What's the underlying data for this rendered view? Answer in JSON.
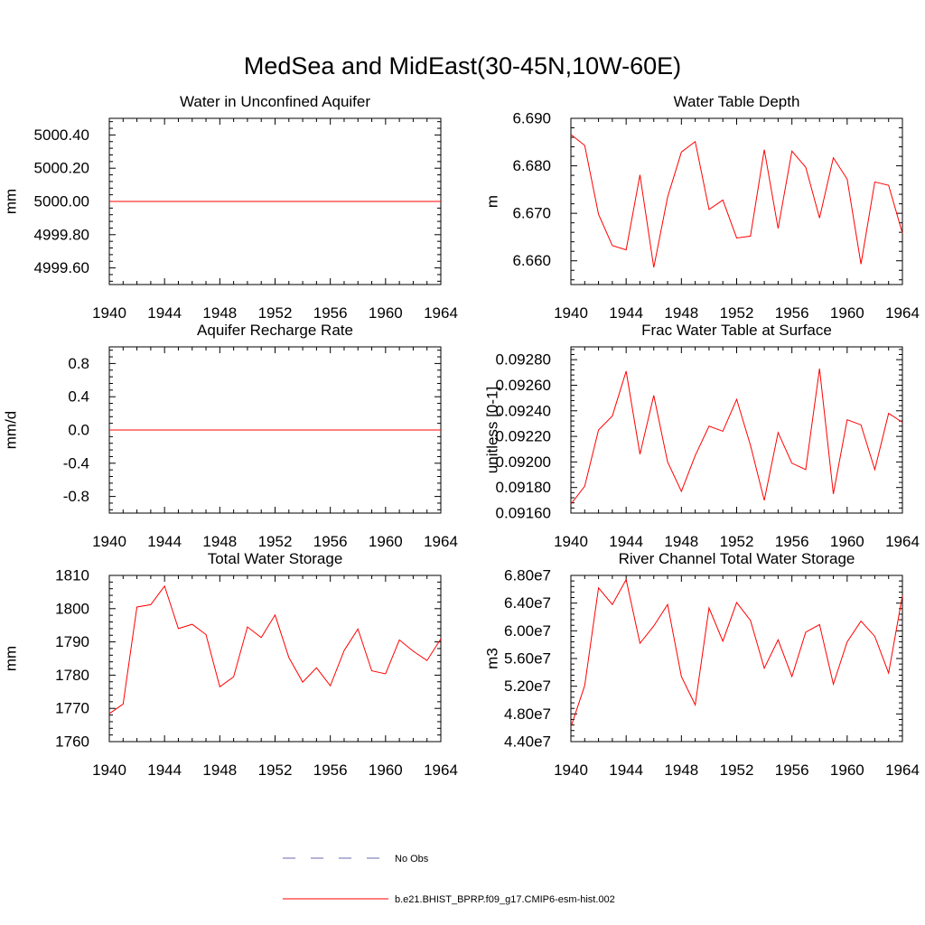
{
  "page_title": "MedSea and MidEast(30-45N,10W-60E)",
  "colors": {
    "model": "#ff0000",
    "obs": "#6a6ab0",
    "axis": "#000000"
  },
  "legend": {
    "obs_label": "No Obs",
    "model_label": "b.e21.BHIST_BPRP.f09_g17.CMIP6-esm-hist.002"
  },
  "chart_data": [
    {
      "type": "line",
      "title": "Water in Unconfined Aquifer",
      "xlabel": "",
      "ylabel": "mm",
      "xlim": [
        1940,
        1964
      ],
      "ylim": [
        4999.5,
        5000.5
      ],
      "xticks": [
        1940,
        1944,
        1948,
        1952,
        1956,
        1960,
        1964
      ],
      "xtick_labels": [
        "1940",
        "1944",
        "1948",
        "1952",
        "1956",
        "1960",
        "1964"
      ],
      "yticks": [
        4999.6,
        4999.8,
        5000.0,
        5000.2,
        5000.4
      ],
      "ytick_labels": [
        "4999.60",
        "4999.80",
        "5000.00",
        "5000.20",
        "5000.40"
      ],
      "x": [
        1940,
        1941,
        1942,
        1943,
        1944,
        1945,
        1946,
        1947,
        1948,
        1949,
        1950,
        1951,
        1952,
        1953,
        1954,
        1955,
        1956,
        1957,
        1958,
        1959,
        1960,
        1961,
        1962,
        1963,
        1964
      ],
      "series": [
        {
          "name": "b.e21.BHIST_BPRP.f09_g17.CMIP6-esm-hist.002",
          "values": [
            5000,
            5000,
            5000,
            5000,
            5000,
            5000,
            5000,
            5000,
            5000,
            5000,
            5000,
            5000,
            5000,
            5000,
            5000,
            5000,
            5000,
            5000,
            5000,
            5000,
            5000,
            5000,
            5000,
            5000,
            5000
          ]
        }
      ]
    },
    {
      "type": "line",
      "title": "Water Table Depth",
      "xlabel": "",
      "ylabel": "m",
      "xlim": [
        1940,
        1964
      ],
      "ylim": [
        6.655,
        6.69
      ],
      "xticks": [
        1940,
        1944,
        1948,
        1952,
        1956,
        1960,
        1964
      ],
      "xtick_labels": [
        "1940",
        "1944",
        "1948",
        "1952",
        "1956",
        "1960",
        "1964"
      ],
      "yticks": [
        6.66,
        6.67,
        6.68,
        6.69
      ],
      "ytick_labels": [
        "6.660",
        "6.670",
        "6.680",
        "6.690"
      ],
      "x": [
        1940,
        1941,
        1942,
        1943,
        1944,
        1945,
        1946,
        1947,
        1948,
        1949,
        1950,
        1951,
        1952,
        1953,
        1954,
        1955,
        1956,
        1957,
        1958,
        1959,
        1960,
        1961,
        1962,
        1963,
        1964
      ],
      "series": [
        {
          "name": "b.e21.BHIST_BPRP.f09_g17.CMIP6-esm-hist.002",
          "values": [
            6.6866,
            6.6843,
            6.6698,
            6.6632,
            6.6623,
            6.6781,
            6.6586,
            6.6734,
            6.6829,
            6.6851,
            6.6708,
            6.6728,
            6.6648,
            6.6652,
            6.6834,
            6.6668,
            6.6831,
            6.6797,
            6.669,
            6.6817,
            6.6772,
            6.6593,
            6.6766,
            6.6759,
            6.6658
          ]
        }
      ]
    },
    {
      "type": "line",
      "title": "Aquifer Recharge Rate",
      "xlabel": "",
      "ylabel": "mm/d",
      "xlim": [
        1940,
        1964
      ],
      "ylim": [
        -1.0,
        1.0
      ],
      "xticks": [
        1940,
        1944,
        1948,
        1952,
        1956,
        1960,
        1964
      ],
      "xtick_labels": [
        "1940",
        "1944",
        "1948",
        "1952",
        "1956",
        "1960",
        "1964"
      ],
      "yticks": [
        -0.8,
        -0.4,
        0.0,
        0.4,
        0.8
      ],
      "ytick_labels": [
        "-0.8",
        "-0.4",
        "0.0",
        "0.4",
        "0.8"
      ],
      "x": [
        1940,
        1941,
        1942,
        1943,
        1944,
        1945,
        1946,
        1947,
        1948,
        1949,
        1950,
        1951,
        1952,
        1953,
        1954,
        1955,
        1956,
        1957,
        1958,
        1959,
        1960,
        1961,
        1962,
        1963,
        1964
      ],
      "series": [
        {
          "name": "b.e21.BHIST_BPRP.f09_g17.CMIP6-esm-hist.002",
          "values": [
            0,
            0,
            0,
            0,
            0,
            0,
            0,
            0,
            0,
            0,
            0,
            0,
            0,
            0,
            0,
            0,
            0,
            0,
            0,
            0,
            0,
            0,
            0,
            0,
            0
          ]
        }
      ]
    },
    {
      "type": "line",
      "title": "Frac Water Table at Surface",
      "xlabel": "",
      "ylabel": "unitless [0-1]",
      "xlim": [
        1940,
        1964
      ],
      "ylim": [
        0.0916,
        0.0929
      ],
      "xticks": [
        1940,
        1944,
        1948,
        1952,
        1956,
        1960,
        1964
      ],
      "xtick_labels": [
        "1940",
        "1944",
        "1948",
        "1952",
        "1956",
        "1960",
        "1964"
      ],
      "yticks": [
        0.0916,
        0.0918,
        0.092,
        0.0922,
        0.0924,
        0.0926,
        0.0928
      ],
      "ytick_labels": [
        "0.09160",
        "0.09180",
        "0.09200",
        "0.09220",
        "0.09240",
        "0.09260",
        "0.09280"
      ],
      "x": [
        1940,
        1941,
        1942,
        1943,
        1944,
        1945,
        1946,
        1947,
        1948,
        1949,
        1950,
        1951,
        1952,
        1953,
        1954,
        1955,
        1956,
        1957,
        1958,
        1959,
        1960,
        1961,
        1962,
        1963,
        1964
      ],
      "series": [
        {
          "name": "b.e21.BHIST_BPRP.f09_g17.CMIP6-esm-hist.002",
          "values": [
            0.09167,
            0.09181,
            0.09225,
            0.09236,
            0.09271,
            0.09206,
            0.09252,
            0.092,
            0.09177,
            0.09205,
            0.09228,
            0.09224,
            0.09249,
            0.09213,
            0.0917,
            0.09223,
            0.09199,
            0.09194,
            0.09273,
            0.09175,
            0.09233,
            0.09229,
            0.09194,
            0.09238,
            0.09231
          ]
        }
      ]
    },
    {
      "type": "line",
      "title": "Total Water Storage",
      "xlabel": "",
      "ylabel": "mm",
      "xlim": [
        1940,
        1964
      ],
      "ylim": [
        1760,
        1810
      ],
      "xticks": [
        1940,
        1944,
        1948,
        1952,
        1956,
        1960,
        1964
      ],
      "xtick_labels": [
        "1940",
        "1944",
        "1948",
        "1952",
        "1956",
        "1960",
        "1964"
      ],
      "yticks": [
        1760,
        1770,
        1780,
        1790,
        1800,
        1810
      ],
      "ytick_labels": [
        "1760",
        "1770",
        "1780",
        "1790",
        "1800",
        "1810"
      ],
      "x": [
        1940,
        1941,
        1942,
        1943,
        1944,
        1945,
        1946,
        1947,
        1948,
        1949,
        1950,
        1951,
        1952,
        1953,
        1954,
        1955,
        1956,
        1957,
        1958,
        1959,
        1960,
        1961,
        1962,
        1963,
        1964
      ],
      "series": [
        {
          "name": "b.e21.BHIST_BPRP.f09_g17.CMIP6-esm-hist.002",
          "values": [
            1768.4,
            1771.3,
            1800.5,
            1801.2,
            1806.8,
            1794.0,
            1795.3,
            1792.2,
            1776.5,
            1779.5,
            1794.5,
            1791.3,
            1798.1,
            1785.3,
            1777.9,
            1782.2,
            1776.8,
            1787.4,
            1793.9,
            1781.3,
            1780.4,
            1790.6,
            1787.2,
            1784.4,
            1790.9
          ]
        }
      ]
    },
    {
      "type": "line",
      "title": "River Channel Total Water Storage",
      "xlabel": "",
      "ylabel": "m3",
      "xlim": [
        1940,
        1964
      ],
      "ylim": [
        44000000,
        68000000
      ],
      "xticks": [
        1940,
        1944,
        1948,
        1952,
        1956,
        1960,
        1964
      ],
      "xtick_labels": [
        "1940",
        "1944",
        "1948",
        "1952",
        "1956",
        "1960",
        "1964"
      ],
      "yticks": [
        44000000,
        48000000,
        52000000,
        56000000,
        60000000,
        64000000,
        68000000
      ],
      "ytick_labels": [
        "4.40e7",
        "4.80e7",
        "5.20e7",
        "5.60e7",
        "6.00e7",
        "6.40e7",
        "6.80e7"
      ],
      "x": [
        1940,
        1941,
        1942,
        1943,
        1944,
        1945,
        1946,
        1947,
        1948,
        1949,
        1950,
        1951,
        1952,
        1953,
        1954,
        1955,
        1956,
        1957,
        1958,
        1959,
        1960,
        1961,
        1962,
        1963,
        1964
      ],
      "series": [
        {
          "name": "b.e21.BHIST_BPRP.f09_g17.CMIP6-esm-hist.002",
          "values": [
            46100000,
            52100000,
            66200000,
            63800000,
            67400000,
            58200000,
            60700000,
            63800000,
            53400000,
            49300000,
            63300000,
            58500000,
            64100000,
            61500000,
            54600000,
            58700000,
            53400000,
            59800000,
            60900000,
            52300000,
            58400000,
            61400000,
            59200000,
            53900000,
            65100000
          ]
        }
      ]
    }
  ]
}
